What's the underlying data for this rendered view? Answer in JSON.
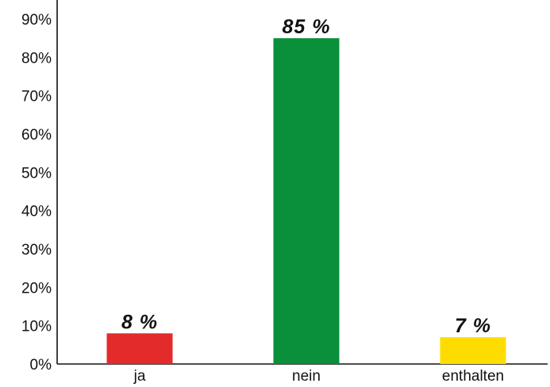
{
  "chart_data": {
    "type": "bar",
    "categories": [
      "ja",
      "nein",
      "enthalten"
    ],
    "values": [
      8,
      85,
      7
    ],
    "data_labels": [
      "8 %",
      "85 %",
      "7 %"
    ],
    "colors": [
      "#e32b2b",
      "#0a8f3b",
      "#ffdc00"
    ],
    "title": "",
    "xlabel": "",
    "ylabel": "",
    "ylim": [
      0,
      90
    ],
    "yticks": [
      0,
      10,
      20,
      30,
      40,
      50,
      60,
      70,
      80,
      90
    ],
    "ytick_labels": [
      "0%",
      "10%",
      "20%",
      "30%",
      "40%",
      "50%",
      "60%",
      "70%",
      "80%",
      "90%"
    ],
    "grid": false,
    "legend": "none"
  }
}
